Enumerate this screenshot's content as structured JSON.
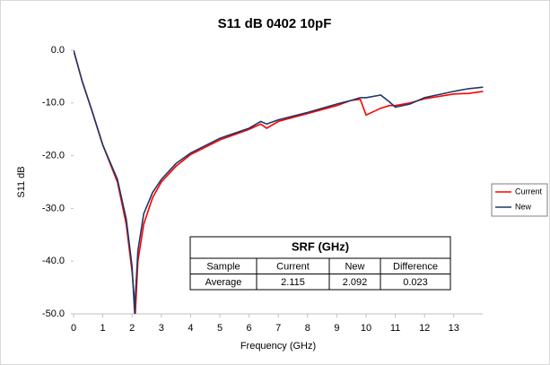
{
  "chart_data": {
    "type": "line",
    "title": "S11 dB 0402 10pF",
    "x_label": "Frequency  (GHz)",
    "y_label": "S11 dB",
    "x": [
      0,
      0.3,
      0.6,
      1,
      1.5,
      1.8,
      2,
      2.09,
      2.11,
      2.2,
      2.4,
      2.7,
      3,
      3.5,
      4,
      5,
      6,
      6.4,
      6.6,
      7,
      8,
      9,
      9.5,
      9.8,
      10,
      10.5,
      10.8,
      11,
      11.5,
      12,
      13,
      13.5,
      14
    ],
    "series": [
      {
        "name": "Current",
        "color": "#ff0000",
        "values": [
          0,
          -6,
          -11,
          -18,
          -25,
          -33,
          -42,
          -48,
          -50,
          -40,
          -33,
          -28,
          -25,
          -22,
          -19.8,
          -17,
          -15,
          -14,
          -14.8,
          -13.5,
          -12,
          -10.5,
          -9.5,
          -9.3,
          -12.3,
          -11,
          -10.5,
          -10.5,
          -10,
          -9.2,
          -8.3,
          -8.2,
          -7.8
        ]
      },
      {
        "name": "New",
        "color": "#203864",
        "values": [
          0,
          -6,
          -11,
          -18,
          -24.5,
          -32,
          -41,
          -50,
          -47,
          -38,
          -31,
          -27,
          -24.5,
          -21.5,
          -19.5,
          -16.7,
          -14.8,
          -13.5,
          -14,
          -13.2,
          -11.8,
          -10.2,
          -9.5,
          -9,
          -9,
          -8.5,
          -9.8,
          -10.8,
          -10.2,
          -9,
          -7.8,
          -7.3,
          -7
        ]
      }
    ],
    "xlim": [
      0,
      14
    ],
    "xticks": [
      0,
      1,
      2,
      3,
      4,
      5,
      6,
      7,
      8,
      9,
      10,
      11,
      12,
      13
    ],
    "ylim": [
      -50,
      0
    ],
    "yticks": [
      {
        "value": -50,
        "label": "-50.0"
      },
      {
        "value": -40,
        "label": "-40.0"
      },
      {
        "value": -30,
        "label": "-30.0"
      },
      {
        "value": -20,
        "label": "-20.0"
      },
      {
        "value": -10,
        "label": "-10.0"
      },
      {
        "value": 0,
        "label": "0.0"
      }
    ],
    "grid": false,
    "legend": "right",
    "table": {
      "title": "SRF (GHz)",
      "header": [
        "Sample",
        "Current",
        "New",
        "Difference"
      ],
      "rows": [
        [
          "Average",
          "2.115",
          "2.092",
          "0.023"
        ]
      ]
    }
  }
}
